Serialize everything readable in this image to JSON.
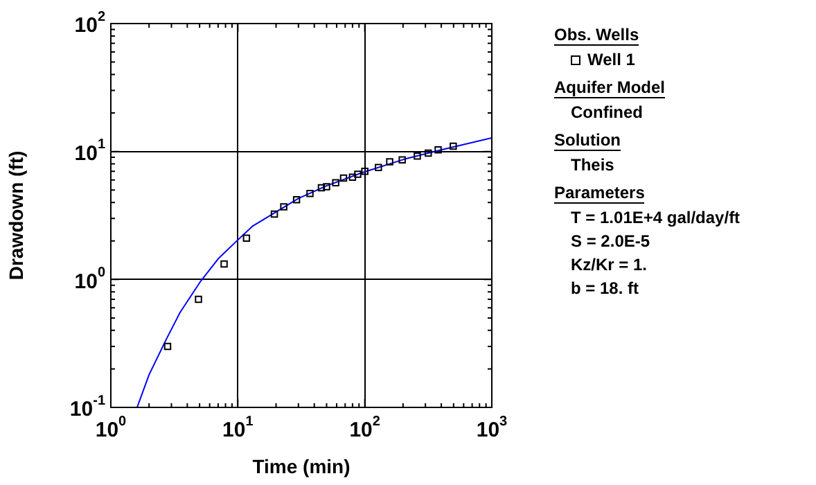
{
  "chart_data": {
    "type": "scatter",
    "xlabel": "Time (min)",
    "ylabel": "Drawdown (ft)",
    "log": "xy",
    "grid": true,
    "legend": "right",
    "legend_title": "Obs. Wells",
    "xlim": [
      1,
      1000
    ],
    "ylim": [
      0.1,
      100
    ],
    "xticks": [
      {
        "value": 1,
        "label": "10$^{0}$"
      },
      {
        "value": 2,
        "label": null
      },
      {
        "value": 3,
        "label": null
      },
      {
        "value": 4,
        "label": null
      },
      {
        "value": 5,
        "label": null
      },
      {
        "value": 6,
        "label": null
      },
      {
        "value": 7,
        "label": null
      },
      {
        "value": 8,
        "label": null
      },
      {
        "value": 9,
        "label": null
      },
      {
        "value": 10,
        "label": "10$^{1}$"
      },
      {
        "value": 20,
        "label": null
      },
      {
        "value": 30,
        "label": null
      },
      {
        "value": 40,
        "label": null
      },
      {
        "value": 50,
        "label": null
      },
      {
        "value": 60,
        "label": null
      },
      {
        "value": 70,
        "label": null
      },
      {
        "value": 80,
        "label": null
      },
      {
        "value": 90,
        "label": null
      },
      {
        "value": 100,
        "label": "10$^{2}$"
      },
      {
        "value": 200,
        "label": null
      },
      {
        "value": 300,
        "label": null
      },
      {
        "value": 400,
        "label": null
      },
      {
        "value": 500,
        "label": null
      },
      {
        "value": 600,
        "label": null
      },
      {
        "value": 700,
        "label": null
      },
      {
        "value": 800,
        "label": null
      },
      {
        "value": 900,
        "label": null
      },
      {
        "value": 1000,
        "label": "10$^{3}$"
      }
    ],
    "yticks": [
      {
        "value": 0.1,
        "label": "10$^{-1}$"
      },
      {
        "value": 0.2,
        "label": null
      },
      {
        "value": 0.3,
        "label": null
      },
      {
        "value": 0.4,
        "label": null
      },
      {
        "value": 0.5,
        "label": null
      },
      {
        "value": 0.6,
        "label": null
      },
      {
        "value": 0.7,
        "label": null
      },
      {
        "value": 0.8,
        "label": null
      },
      {
        "value": 0.9,
        "label": null
      },
      {
        "value": 1,
        "label": "10$^{0}$"
      },
      {
        "value": 2,
        "label": null
      },
      {
        "value": 3,
        "label": null
      },
      {
        "value": 4,
        "label": null
      },
      {
        "value": 5,
        "label": null
      },
      {
        "value": 6,
        "label": null
      },
      {
        "value": 7,
        "label": null
      },
      {
        "value": 8,
        "label": null
      },
      {
        "value": 9,
        "label": null
      },
      {
        "value": 10,
        "label": "10$^{1}$"
      },
      {
        "value": 20,
        "label": null
      },
      {
        "value": 30,
        "label": null
      },
      {
        "value": 40,
        "label": null
      },
      {
        "value": 50,
        "label": null
      },
      {
        "value": 60,
        "label": null
      },
      {
        "value": 70,
        "label": null
      },
      {
        "value": 80,
        "label": null
      },
      {
        "value": 90,
        "label": null
      },
      {
        "value": 100,
        "label": "10$^{2}$"
      }
    ],
    "series": [
      {
        "name": "Well 1",
        "marker": "square",
        "color": "#000000",
        "x": [
          2.8,
          4.9,
          7.8,
          11.7,
          19.4,
          23,
          29,
          37,
          45.5,
          50,
          59,
          68,
          80,
          88,
          100,
          128,
          157,
          197,
          259,
          316,
          378,
          497
        ],
        "values": [
          0.3,
          0.7,
          1.32,
          2.1,
          3.24,
          3.7,
          4.2,
          4.7,
          5.2,
          5.3,
          5.7,
          6.2,
          6.3,
          6.65,
          7.0,
          7.5,
          8.3,
          8.6,
          9.2,
          9.7,
          10.3,
          11.0
        ]
      },
      {
        "type": "line",
        "marker": "none",
        "color": "#0000ff",
        "x": [
          1.61,
          2.0,
          2.73,
          3.5,
          5.1,
          7.0,
          9.6,
          13,
          18.7,
          30,
          50,
          98,
          212,
          400,
          1000
        ],
        "values": [
          0.1,
          0.18,
          0.34,
          0.55,
          0.97,
          1.45,
          1.96,
          2.6,
          3.24,
          4.3,
          5.4,
          6.9,
          8.8,
          10.3,
          12.8
        ]
      }
    ],
    "annotations": [
      "Aquifer Model",
      "Confined",
      "Solution",
      "Theis",
      "Parameters",
      "T = 1.01E+4 gal/day/ft",
      "S = 2.0E-5",
      "Kz/Kr = 1.",
      "b = 18. ft"
    ]
  }
}
